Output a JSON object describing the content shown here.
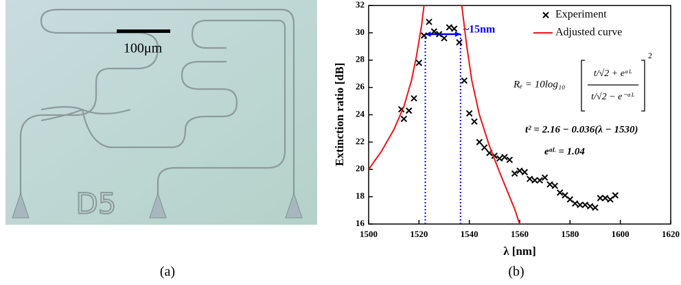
{
  "panel_a": {
    "scale_bar_label": "100μm",
    "chip_label": "D5",
    "label": "(a)"
  },
  "panel_b_label": "(b)",
  "chart_data": {
    "type": "scatter",
    "x_label": "λ [nm]",
    "y_label": "Extinction ratio [dB]",
    "xlim": [
      1500,
      1620
    ],
    "xticks": [
      1500,
      1520,
      1540,
      1560,
      1580,
      1600,
      1620
    ],
    "ylim": [
      16,
      32
    ],
    "yticks": [
      16,
      18,
      20,
      22,
      24,
      26,
      28,
      30,
      32
    ],
    "legend": "upper right",
    "series": [
      {
        "name": "Experiment",
        "type": "scatter",
        "color": "#000000",
        "x": [
          1513,
          1514,
          1516,
          1518,
          1520,
          1522,
          1524,
          1526,
          1528,
          1530,
          1532,
          1534,
          1536,
          1538,
          1540,
          1542,
          1544,
          1546,
          1548,
          1550,
          1552,
          1554,
          1556,
          1558,
          1560,
          1562,
          1564,
          1566,
          1568,
          1570,
          1572,
          1574,
          1576,
          1578,
          1580,
          1582,
          1584,
          1586,
          1588,
          1590,
          1592,
          1594,
          1596,
          1598
        ],
        "values": [
          24.4,
          23.7,
          24.3,
          25.2,
          27.8,
          29.8,
          30.8,
          30.1,
          29.9,
          29.6,
          30.4,
          30.3,
          29.3,
          26.5,
          24.1,
          23.5,
          22.0,
          21.6,
          21.2,
          21.0,
          20.8,
          20.9,
          20.7,
          19.7,
          19.9,
          19.8,
          19.3,
          19.2,
          19.2,
          19.4,
          18.9,
          18.8,
          18.3,
          18.1,
          17.8,
          17.5,
          17.4,
          17.4,
          17.3,
          17.2,
          17.9,
          17.9,
          17.8,
          18.1
        ]
      },
      {
        "name": "Adjusted curve",
        "type": "line",
        "color": "#e8141a",
        "x": [
          1500,
          1505,
          1510,
          1514,
          1517,
          1519,
          1521,
          1522,
          1530,
          1537,
          1539,
          1541,
          1544,
          1548,
          1552,
          1556,
          1558,
          1560
        ],
        "values": [
          20,
          21.3,
          22.9,
          24.6,
          26.5,
          28.3,
          30.5,
          32,
          null,
          32,
          29,
          26.5,
          24,
          21.7,
          19.8,
          18,
          17.1,
          16
        ]
      }
    ],
    "reference_lines": [
      1522.5,
      1536.5
    ],
    "span_arrow": {
      "y": 29.9,
      "text": "~15nm",
      "color": "#0000ff"
    },
    "formula": {
      "lhs": "Rₑ = 10log₁₀",
      "numerator": "t/√2 + eᵅᴸ",
      "denominator": "t/√2 − e⁻ᵅᴸ",
      "exponent": "2",
      "t_fit": "t² = 2.16 − 0.036(λ − 1530)",
      "loss": "eᵅᴸ = 1.04"
    }
  }
}
